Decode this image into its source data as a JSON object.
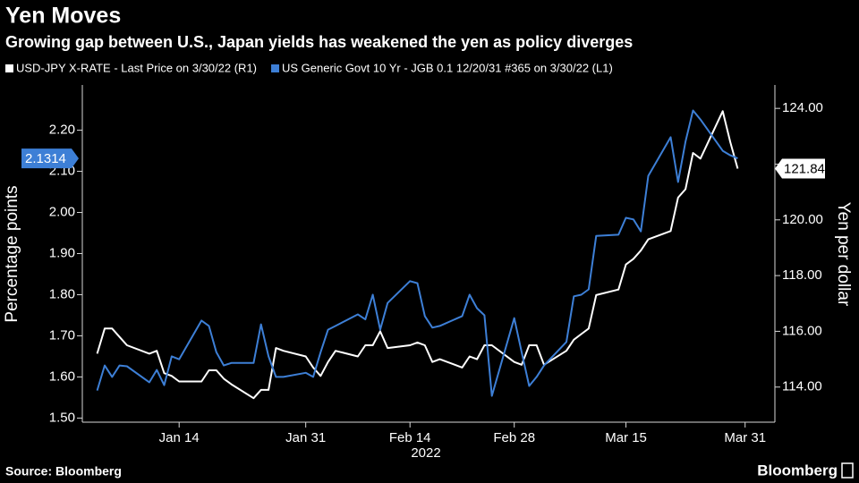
{
  "chart_data": {
    "type": "line",
    "title": "Yen Moves",
    "subtitle": "Growing gap between U.S., Japan yields has weakened the yen as policy diverges",
    "x_label": "2022",
    "y_label": "Percentage points",
    "y2_label": "Yen per dollar",
    "source": "Source: Bloomberg",
    "brand": "Bloomberg",
    "x": [
      "2022-01-03",
      "2022-01-04",
      "2022-01-05",
      "2022-01-06",
      "2022-01-07",
      "2022-01-10",
      "2022-01-11",
      "2022-01-12",
      "2022-01-13",
      "2022-01-14",
      "2022-01-17",
      "2022-01-18",
      "2022-01-19",
      "2022-01-20",
      "2022-01-21",
      "2022-01-24",
      "2022-01-25",
      "2022-01-26",
      "2022-01-27",
      "2022-01-28",
      "2022-01-31",
      "2022-02-01",
      "2022-02-02",
      "2022-02-03",
      "2022-02-04",
      "2022-02-07",
      "2022-02-08",
      "2022-02-09",
      "2022-02-10",
      "2022-02-11",
      "2022-02-14",
      "2022-02-15",
      "2022-02-16",
      "2022-02-17",
      "2022-02-18",
      "2022-02-21",
      "2022-02-22",
      "2022-02-23",
      "2022-02-24",
      "2022-02-25",
      "2022-02-28",
      "2022-03-01",
      "2022-03-02",
      "2022-03-03",
      "2022-03-04",
      "2022-03-07",
      "2022-03-08",
      "2022-03-09",
      "2022-03-10",
      "2022-03-11",
      "2022-03-14",
      "2022-03-15",
      "2022-03-16",
      "2022-03-17",
      "2022-03-18",
      "2022-03-21",
      "2022-03-22",
      "2022-03-23",
      "2022-03-24",
      "2022-03-25",
      "2022-03-28",
      "2022-03-29",
      "2022-03-30"
    ],
    "series": [
      {
        "name": "USD-JPY X-RATE - Last Price on 3/30/22 (R1)",
        "color": "#ffffff",
        "axis": "y2",
        "values": [
          115.2,
          116.1,
          116.1,
          115.8,
          115.5,
          115.2,
          115.3,
          114.5,
          114.4,
          114.2,
          114.2,
          114.6,
          114.6,
          114.3,
          114.1,
          113.6,
          113.9,
          113.9,
          115.4,
          115.3,
          115.1,
          114.7,
          114.4,
          114.9,
          115.3,
          115.1,
          115.5,
          115.5,
          116.0,
          115.4,
          115.5,
          115.6,
          115.5,
          114.9,
          115.0,
          114.7,
          115.1,
          115.0,
          115.5,
          115.5,
          114.9,
          114.8,
          115.5,
          115.5,
          114.8,
          115.3,
          115.7,
          115.9,
          116.1,
          117.3,
          117.5,
          118.4,
          118.6,
          118.9,
          119.3,
          119.6,
          120.8,
          121.1,
          122.4,
          122.2,
          123.9,
          122.8,
          121.84
        ]
      },
      {
        "name": "US Generic Govt 10 Yr - JGB 0.1 12/20/31 #365 on 3/30/22 (L1)",
        "color": "#3d7fd6",
        "values": [
          1.567,
          1.628,
          1.6,
          1.628,
          1.626,
          1.587,
          1.617,
          1.58,
          1.65,
          1.643,
          1.737,
          1.724,
          1.66,
          1.628,
          1.634,
          1.634,
          1.728,
          1.65,
          1.6,
          1.6,
          1.61,
          1.6,
          1.66,
          1.715,
          1.724,
          1.752,
          1.74,
          1.8,
          1.715,
          1.78,
          1.833,
          1.828,
          1.748,
          1.72,
          1.724,
          1.748,
          1.8,
          1.767,
          1.75,
          1.554,
          1.743,
          1.66,
          1.578,
          1.6,
          1.628,
          1.685,
          1.796,
          1.8,
          1.813,
          1.943,
          1.946,
          1.987,
          1.983,
          1.954,
          2.089,
          2.183,
          2.074,
          2.172,
          2.248,
          2.226,
          2.15,
          2.139,
          2.1314
        ]
      }
    ],
    "xlim": [
      "2022-01-01",
      "2022-04-04"
    ],
    "xticks": [
      {
        "value": "2022-01-14",
        "label": "Jan 14"
      },
      {
        "value": "2022-01-31",
        "label": "Jan 31"
      },
      {
        "value": "2022-02-14",
        "label": "Feb 14"
      },
      {
        "value": "2022-02-28",
        "label": "Feb 28"
      },
      {
        "value": "2022-03-15",
        "label": "Mar 15"
      },
      {
        "value": "2022-03-31",
        "label": "Mar 31"
      }
    ],
    "ylim": [
      1.49,
      2.31
    ],
    "yticks": [
      {
        "value": 1.5,
        "label": "1.50"
      },
      {
        "value": 1.6,
        "label": "1.60"
      },
      {
        "value": 1.7,
        "label": "1.70"
      },
      {
        "value": 1.8,
        "label": "1.80"
      },
      {
        "value": 1.9,
        "label": "1.90"
      },
      {
        "value": 2.0,
        "label": "2.00"
      },
      {
        "value": 2.1,
        "label": "2.10"
      },
      {
        "value": 2.2,
        "label": "2.20"
      }
    ],
    "y2lim": [
      112.74,
      124.84
    ],
    "y2ticks": [
      {
        "value": 114,
        "label": "114.00"
      },
      {
        "value": 116,
        "label": "116.00"
      },
      {
        "value": 118,
        "label": "118.00"
      },
      {
        "value": 120,
        "label": "120.00"
      },
      {
        "value": 122,
        "label": "122.00"
      },
      {
        "value": 124,
        "label": "124.00"
      }
    ]
  }
}
